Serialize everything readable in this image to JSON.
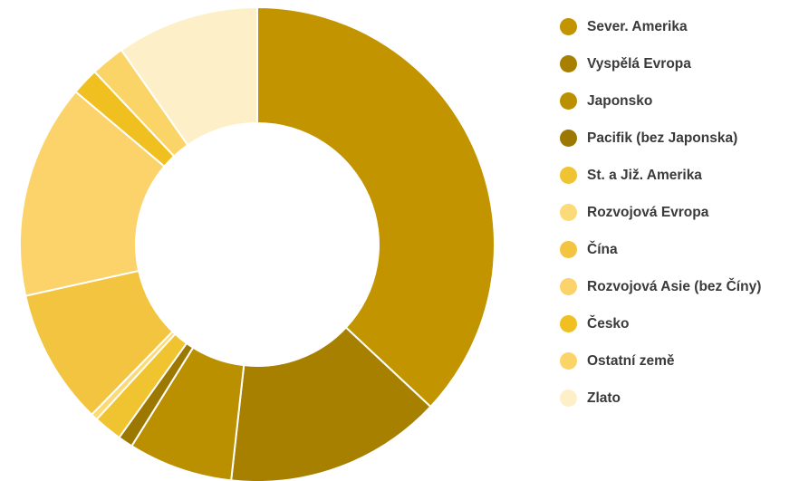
{
  "chart_data": {
    "type": "pie",
    "variant": "donut",
    "categories": [
      "Sever. Amerika",
      "Vyspělá Evropa",
      "Japonsko",
      "Pacifik (bez Japonska)",
      "St. a Již. Amerika",
      "Rozvojová Evropa",
      "Čína",
      "Rozvojová Asie (bez Číny)",
      "Česko",
      "Ostatní země",
      "Zlato"
    ],
    "values": [
      40.0,
      16.0,
      7.7,
      1.1,
      2.1,
      0.5,
      10.0,
      15.8,
      2.0,
      2.5,
      10.5
    ],
    "colors": [
      "#c19400",
      "#a88000",
      "#bb9000",
      "#9c7800",
      "#f0c330",
      "#fcda78",
      "#f2c440",
      "#fbd36a",
      "#f0c020",
      "#fbd468",
      "#fdefc8"
    ],
    "legend_position": "right"
  }
}
